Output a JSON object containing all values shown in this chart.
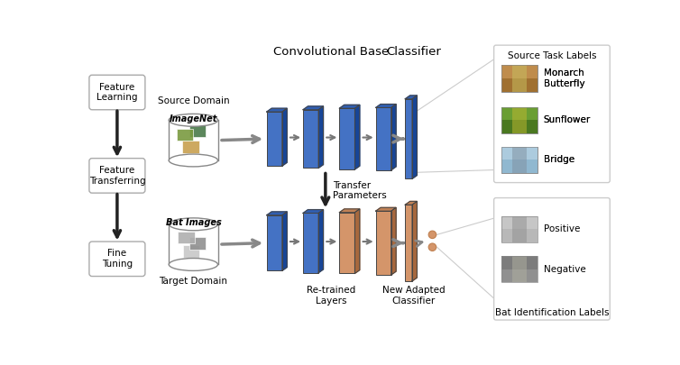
{
  "bg_color": "#ffffff",
  "blue_dark": "#1F3D7A",
  "blue_mid": "#2E5FA3",
  "blue_light": "#4472C4",
  "orange_color": "#D4956A",
  "orange_light": "#E8C4A0",
  "arrow_color": "#888888",
  "arrow_dark": "#333333",
  "left_labels": [
    "Feature\nLearning",
    "Feature\nTransferring",
    "Fine\nTuning"
  ],
  "source_label": "Source Domain",
  "target_label": "Target Domain",
  "imagenet_label": "ImageNet",
  "bat_label": "Bat Images",
  "conv_base_label": "Convolutional Base",
  "classifier_label": "Classifier",
  "transfer_label": "Transfer\nParameters",
  "retrained_label": "Re-trained\nLayers",
  "new_adapted_label": "New Adapted\nClassifier",
  "source_task_title": "Source Task Labels",
  "source_task_items": [
    "Monarch\nButterfly",
    "Sunflower",
    "Bridge"
  ],
  "source_img_colors": [
    [
      "#c8872a",
      "#d4a050",
      "#b06010"
    ],
    [
      "#5a8a30",
      "#7aaa40",
      "#4a7020"
    ],
    [
      "#7ab0cc",
      "#5a90b0",
      "#aad0e0"
    ]
  ],
  "bat_task_title": "Bat Identification Labels",
  "bat_task_items": [
    "Positive",
    "Negative"
  ],
  "bat_img_colors": [
    [
      "#aaaaaa",
      "#cccccc",
      "#888888"
    ],
    [
      "#888888",
      "#666666",
      "#aaaaaa"
    ]
  ],
  "title_fontsize": 9.5,
  "label_fontsize": 8.5,
  "small_fontsize": 7.5,
  "tiny_fontsize": 7
}
